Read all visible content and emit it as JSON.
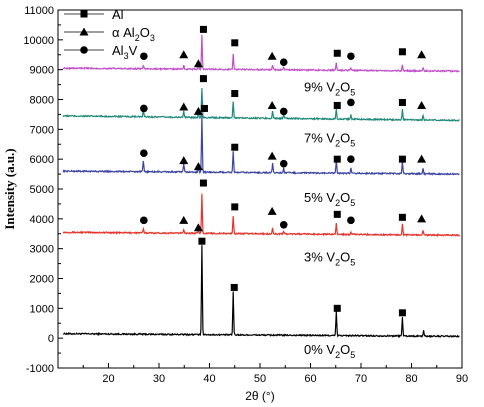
{
  "chart_data": {
    "type": "line",
    "title": "",
    "xlabel": "2θ (°)",
    "ylabel": "Intensity (a.u.)",
    "xlim": [
      10,
      90
    ],
    "ylim": [
      -1000,
      11000
    ],
    "x_ticks": [
      20,
      30,
      40,
      50,
      60,
      70,
      80,
      90
    ],
    "y_ticks": [
      -1000,
      0,
      1000,
      2000,
      3000,
      4000,
      5000,
      6000,
      7000,
      8000,
      9000,
      10000,
      11000
    ],
    "legend": {
      "position": "top-left",
      "entries": [
        {
          "marker": "square",
          "label": "Al"
        },
        {
          "marker": "triangle",
          "label_parts": [
            "α Al",
            "2",
            "O",
            "3",
            ""
          ]
        },
        {
          "marker": "circle",
          "label_parts": [
            "Al",
            "3",
            "V",
            "",
            ""
          ]
        }
      ]
    },
    "series": [
      {
        "name_parts": [
          "0% V",
          "2",
          "O",
          "5"
        ],
        "color": "#000000",
        "baseline": 150,
        "baseline_end": 60,
        "peaks": [
          {
            "x": 38.5,
            "h": 3000
          },
          {
            "x": 44.7,
            "h": 1450
          },
          {
            "x": 65.1,
            "h": 800
          },
          {
            "x": 78.2,
            "h": 650
          },
          {
            "x": 82.4,
            "h": 200
          }
        ],
        "markers": [
          {
            "type": "square",
            "x": 38.5,
            "y": 3250
          },
          {
            "type": "square",
            "x": 44.9,
            "y": 1700
          },
          {
            "type": "square",
            "x": 65.3,
            "y": 1000
          },
          {
            "type": "square",
            "x": 78.2,
            "y": 850
          }
        ]
      },
      {
        "name_parts": [
          "3% V",
          "2",
          "O",
          "5"
        ],
        "color": "#e8322a",
        "baseline": 3550,
        "baseline_end": 3450,
        "peaks": [
          {
            "x": 26.9,
            "h": 120
          },
          {
            "x": 34.9,
            "h": 130
          },
          {
            "x": 37.8,
            "h": 120
          },
          {
            "x": 38.5,
            "h": 1350
          },
          {
            "x": 44.7,
            "h": 600
          },
          {
            "x": 52.5,
            "h": 200
          },
          {
            "x": 54.7,
            "h": 100
          },
          {
            "x": 65.1,
            "h": 400
          },
          {
            "x": 68.0,
            "h": 80
          },
          {
            "x": 78.2,
            "h": 350
          },
          {
            "x": 82.3,
            "h": 150
          }
        ],
        "markers": [
          {
            "type": "circle",
            "x": 27.0,
            "y": 3950
          },
          {
            "type": "triangle",
            "x": 34.9,
            "y": 3950
          },
          {
            "type": "triangle",
            "x": 37.8,
            "y": 3700
          },
          {
            "type": "square",
            "x": 38.8,
            "y": 5200
          },
          {
            "type": "square",
            "x": 45.0,
            "y": 4400
          },
          {
            "type": "triangle",
            "x": 52.4,
            "y": 4250
          },
          {
            "type": "circle",
            "x": 54.7,
            "y": 3800
          },
          {
            "type": "square",
            "x": 65.3,
            "y": 4150
          },
          {
            "type": "circle",
            "x": 68.0,
            "y": 3950
          },
          {
            "type": "square",
            "x": 78.2,
            "y": 4050
          },
          {
            "type": "triangle",
            "x": 82.0,
            "y": 4000
          }
        ]
      },
      {
        "name_parts": [
          "5% V",
          "2",
          "O",
          "5"
        ],
        "color": "#3b44a3",
        "baseline": 5600,
        "baseline_end": 5500,
        "peaks": [
          {
            "x": 26.9,
            "h": 350
          },
          {
            "x": 34.9,
            "h": 250
          },
          {
            "x": 37.8,
            "h": 150
          },
          {
            "x": 38.5,
            "h": 1900
          },
          {
            "x": 44.7,
            "h": 700
          },
          {
            "x": 52.5,
            "h": 300
          },
          {
            "x": 54.7,
            "h": 150
          },
          {
            "x": 65.1,
            "h": 450
          },
          {
            "x": 68.0,
            "h": 200
          },
          {
            "x": 78.2,
            "h": 400
          },
          {
            "x": 82.3,
            "h": 200
          }
        ],
        "markers": [
          {
            "type": "circle",
            "x": 27.0,
            "y": 6200
          },
          {
            "type": "triangle",
            "x": 34.9,
            "y": 5950
          },
          {
            "type": "triangle",
            "x": 37.8,
            "y": 5750
          },
          {
            "type": "square",
            "x": 39.0,
            "y": 7700
          },
          {
            "type": "square",
            "x": 45.0,
            "y": 6400
          },
          {
            "type": "triangle",
            "x": 52.4,
            "y": 6100
          },
          {
            "type": "circle",
            "x": 54.7,
            "y": 5850
          },
          {
            "type": "square",
            "x": 65.3,
            "y": 6000
          },
          {
            "type": "circle",
            "x": 68.0,
            "y": 6000
          },
          {
            "type": "square",
            "x": 78.2,
            "y": 6000
          },
          {
            "type": "triangle",
            "x": 82.0,
            "y": 6000
          }
        ]
      },
      {
        "name_parts": [
          "7% V",
          "2",
          "O",
          "5"
        ],
        "color": "#1f8a7a",
        "baseline": 7450,
        "baseline_end": 7300,
        "peaks": [
          {
            "x": 26.9,
            "h": 200
          },
          {
            "x": 34.9,
            "h": 200
          },
          {
            "x": 37.8,
            "h": 150
          },
          {
            "x": 38.5,
            "h": 1000
          },
          {
            "x": 44.7,
            "h": 550
          },
          {
            "x": 52.5,
            "h": 250
          },
          {
            "x": 54.7,
            "h": 120
          },
          {
            "x": 65.1,
            "h": 350
          },
          {
            "x": 68.0,
            "h": 150
          },
          {
            "x": 78.2,
            "h": 350
          },
          {
            "x": 82.3,
            "h": 150
          }
        ],
        "markers": [
          {
            "type": "circle",
            "x": 27.0,
            "y": 7700
          },
          {
            "type": "triangle",
            "x": 34.9,
            "y": 7750
          },
          {
            "type": "triangle",
            "x": 37.8,
            "y": 7600
          },
          {
            "type": "square",
            "x": 38.8,
            "y": 8700
          },
          {
            "type": "square",
            "x": 45.0,
            "y": 8200
          },
          {
            "type": "triangle",
            "x": 52.4,
            "y": 7800
          },
          {
            "type": "circle",
            "x": 54.7,
            "y": 7600
          },
          {
            "type": "square",
            "x": 65.3,
            "y": 7800
          },
          {
            "type": "circle",
            "x": 68.0,
            "y": 7900
          },
          {
            "type": "square",
            "x": 78.2,
            "y": 7900
          },
          {
            "type": "triangle",
            "x": 82.0,
            "y": 7800
          }
        ]
      },
      {
        "name_parts": [
          "9% V",
          "2",
          "O",
          "5"
        ],
        "color": "#c14fc9",
        "baseline": 9050,
        "baseline_end": 8950,
        "peaks": [
          {
            "x": 26.9,
            "h": 100
          },
          {
            "x": 34.9,
            "h": 120
          },
          {
            "x": 37.8,
            "h": 100
          },
          {
            "x": 38.5,
            "h": 1150
          },
          {
            "x": 44.7,
            "h": 500
          },
          {
            "x": 52.5,
            "h": 150
          },
          {
            "x": 54.7,
            "h": 80
          },
          {
            "x": 65.1,
            "h": 250
          },
          {
            "x": 68.0,
            "h": 80
          },
          {
            "x": 78.2,
            "h": 200
          },
          {
            "x": 82.3,
            "h": 100
          }
        ],
        "markers": [
          {
            "type": "circle",
            "x": 27.0,
            "y": 9450
          },
          {
            "type": "triangle",
            "x": 34.9,
            "y": 9500
          },
          {
            "type": "triangle",
            "x": 37.8,
            "y": 9200
          },
          {
            "type": "square",
            "x": 38.8,
            "y": 10350
          },
          {
            "type": "square",
            "x": 45.0,
            "y": 9900
          },
          {
            "type": "triangle",
            "x": 52.4,
            "y": 9450
          },
          {
            "type": "circle",
            "x": 54.7,
            "y": 9250
          },
          {
            "type": "square",
            "x": 65.3,
            "y": 9550
          },
          {
            "type": "circle",
            "x": 68.0,
            "y": 9450
          },
          {
            "type": "square",
            "x": 78.2,
            "y": 9600
          },
          {
            "type": "triangle",
            "x": 82.0,
            "y": 9500
          }
        ]
      }
    ],
    "series_label_y": [
      -400,
      2700,
      4700,
      6700,
      8400
    ]
  }
}
